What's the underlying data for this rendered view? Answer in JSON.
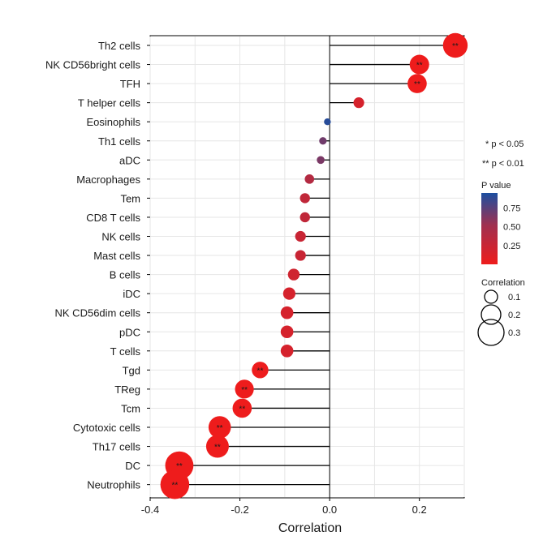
{
  "chart_data": {
    "type": "lollipop",
    "xlabel": "Correlation",
    "xlim": [
      -0.4,
      0.3
    ],
    "xticks": [
      -0.4,
      -0.2,
      0.0,
      0.2
    ],
    "xtick_labels": [
      "-0.4",
      "-0.2",
      "0.0",
      "0.2"
    ],
    "grid": true,
    "categories": [
      "Th2 cells",
      "NK CD56bright cells",
      "TFH",
      "T helper cells",
      "Eosinophils",
      "Th1 cells",
      "aDC",
      "Macrophages",
      "Tem",
      "CD8 T cells",
      "NK cells",
      "Mast cells",
      "B cells",
      "iDC",
      "NK CD56dim cells",
      "pDC",
      "T cells",
      "Tgd",
      "TReg",
      "Tcm",
      "Cytotoxic cells",
      "Th17 cells",
      "DC",
      "Neutrophils"
    ],
    "correlation": [
      0.28,
      0.2,
      0.195,
      0.065,
      -0.005,
      -0.015,
      -0.02,
      -0.045,
      -0.055,
      -0.055,
      -0.065,
      -0.065,
      -0.08,
      -0.09,
      -0.095,
      -0.095,
      -0.095,
      -0.155,
      -0.19,
      -0.195,
      -0.245,
      -0.25,
      -0.335,
      -0.345
    ],
    "p_value": [
      0.001,
      0.001,
      0.001,
      0.12,
      0.95,
      0.6,
      0.55,
      0.28,
      0.22,
      0.22,
      0.18,
      0.18,
      0.15,
      0.12,
      0.12,
      0.12,
      0.12,
      0.005,
      0.001,
      0.001,
      0.001,
      0.001,
      0.001,
      0.001
    ],
    "significance": [
      "**",
      "**",
      "**",
      "",
      "",
      "",
      "",
      "",
      "",
      "",
      "",
      "",
      "",
      "",
      "",
      "",
      "",
      "**",
      "**",
      "**",
      "**",
      "**",
      "**",
      "**"
    ],
    "legend": {
      "notes": [
        "* p < 0.05",
        "** p < 0.01"
      ],
      "color_title": "P value",
      "color_ticks": [
        "0.75",
        "0.50",
        "0.25"
      ],
      "color_tick_values": [
        0.75,
        0.5,
        0.25
      ],
      "size_title": "Correlation",
      "size_ticks": [
        "0.1",
        "0.2",
        "0.3"
      ],
      "size_tick_values": [
        0.1,
        0.2,
        0.3
      ],
      "placement": "right"
    },
    "colors": {
      "low_p": "#ee1c1c",
      "high_p": "#1c4fa0",
      "stem": "#000000",
      "grid": "#e6e6e6"
    }
  }
}
